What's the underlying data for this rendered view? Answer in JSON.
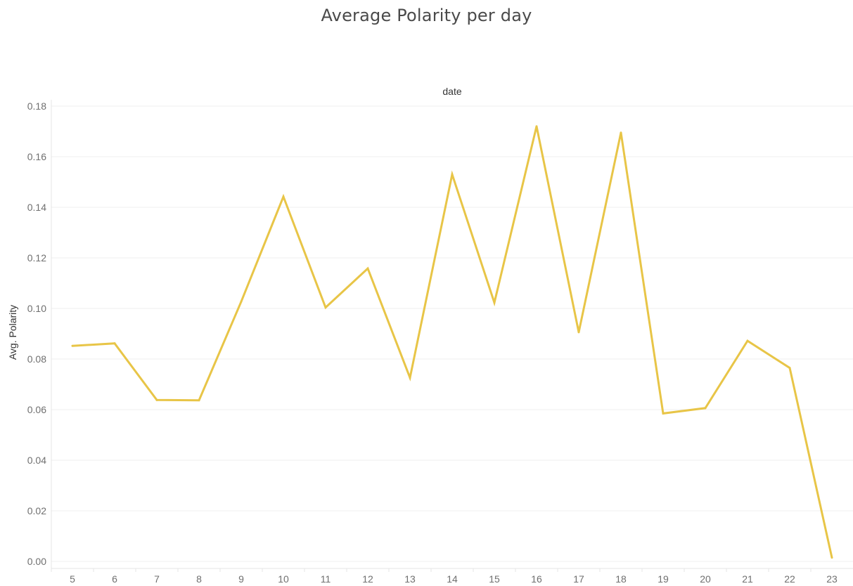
{
  "chart_data": {
    "type": "line",
    "title": "Average Polarity per day",
    "xlabel": "date",
    "ylabel": "Avg. Polarity",
    "x": [
      5,
      6,
      7,
      8,
      9,
      10,
      11,
      12,
      13,
      14,
      15,
      16,
      17,
      18,
      19,
      20,
      21,
      22,
      23
    ],
    "series": [
      {
        "values": [
          0.0852,
          0.0862,
          0.0638,
          0.0637,
          0.1027,
          0.1442,
          0.1004,
          0.1158,
          0.0726,
          0.153,
          0.1023,
          0.172,
          0.0906,
          0.1695,
          0.0585,
          0.0606,
          0.0872,
          0.0765,
          0.0015
        ]
      }
    ],
    "ylim": [
      0,
      0.18
    ],
    "yticks": [
      "0.00",
      "0.02",
      "0.04",
      "0.06",
      "0.08",
      "0.10",
      "0.12",
      "0.14",
      "0.16",
      "0.18"
    ],
    "grid": true,
    "line_color": "#e8c547"
  }
}
